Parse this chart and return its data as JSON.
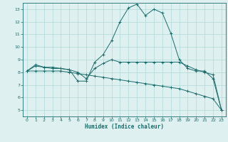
{
  "xlabel": "Humidex (Indice chaleur)",
  "xlim": [
    -0.5,
    23.5
  ],
  "ylim": [
    4.5,
    13.5
  ],
  "xticks": [
    0,
    1,
    2,
    3,
    4,
    5,
    6,
    7,
    8,
    9,
    10,
    11,
    12,
    13,
    14,
    15,
    16,
    17,
    18,
    19,
    20,
    21,
    22,
    23
  ],
  "yticks": [
    5,
    6,
    7,
    8,
    9,
    10,
    11,
    12,
    13
  ],
  "background_color": "#dff0f0",
  "grid_color": "#b0d8d8",
  "line_color": "#1a6b6b",
  "lines": [
    {
      "x": [
        0,
        1,
        2,
        3,
        4,
        5,
        6,
        7,
        8,
        9,
        10,
        11,
        12,
        13,
        14,
        15,
        16,
        17,
        18,
        19,
        20,
        21,
        22,
        23
      ],
      "y": [
        8.1,
        8.6,
        8.4,
        8.4,
        8.3,
        8.2,
        7.3,
        7.3,
        8.8,
        9.4,
        10.5,
        12.0,
        13.1,
        13.4,
        12.5,
        13.0,
        12.7,
        11.1,
        9.0,
        8.3,
        8.1,
        8.1,
        7.5,
        5.0
      ]
    },
    {
      "x": [
        0,
        1,
        2,
        3,
        4,
        5,
        6,
        7,
        8,
        9,
        10,
        11,
        12,
        13,
        14,
        15,
        16,
        17,
        18,
        19,
        20,
        21,
        22,
        23
      ],
      "y": [
        8.1,
        8.5,
        8.4,
        8.3,
        8.3,
        8.2,
        8.0,
        7.5,
        8.3,
        8.7,
        9.0,
        8.8,
        8.8,
        8.8,
        8.8,
        8.8,
        8.8,
        8.8,
        8.8,
        8.5,
        8.2,
        8.0,
        7.8,
        5.0
      ]
    },
    {
      "x": [
        0,
        1,
        2,
        3,
        4,
        5,
        6,
        7,
        8,
        9,
        10,
        11,
        12,
        13,
        14,
        15,
        16,
        17,
        18,
        19,
        20,
        21,
        22,
        23
      ],
      "y": [
        8.1,
        8.1,
        8.1,
        8.1,
        8.1,
        8.0,
        7.9,
        7.8,
        7.7,
        7.6,
        7.5,
        7.4,
        7.3,
        7.2,
        7.1,
        7.0,
        6.9,
        6.8,
        6.7,
        6.5,
        6.3,
        6.1,
        5.9,
        5.0
      ]
    }
  ]
}
